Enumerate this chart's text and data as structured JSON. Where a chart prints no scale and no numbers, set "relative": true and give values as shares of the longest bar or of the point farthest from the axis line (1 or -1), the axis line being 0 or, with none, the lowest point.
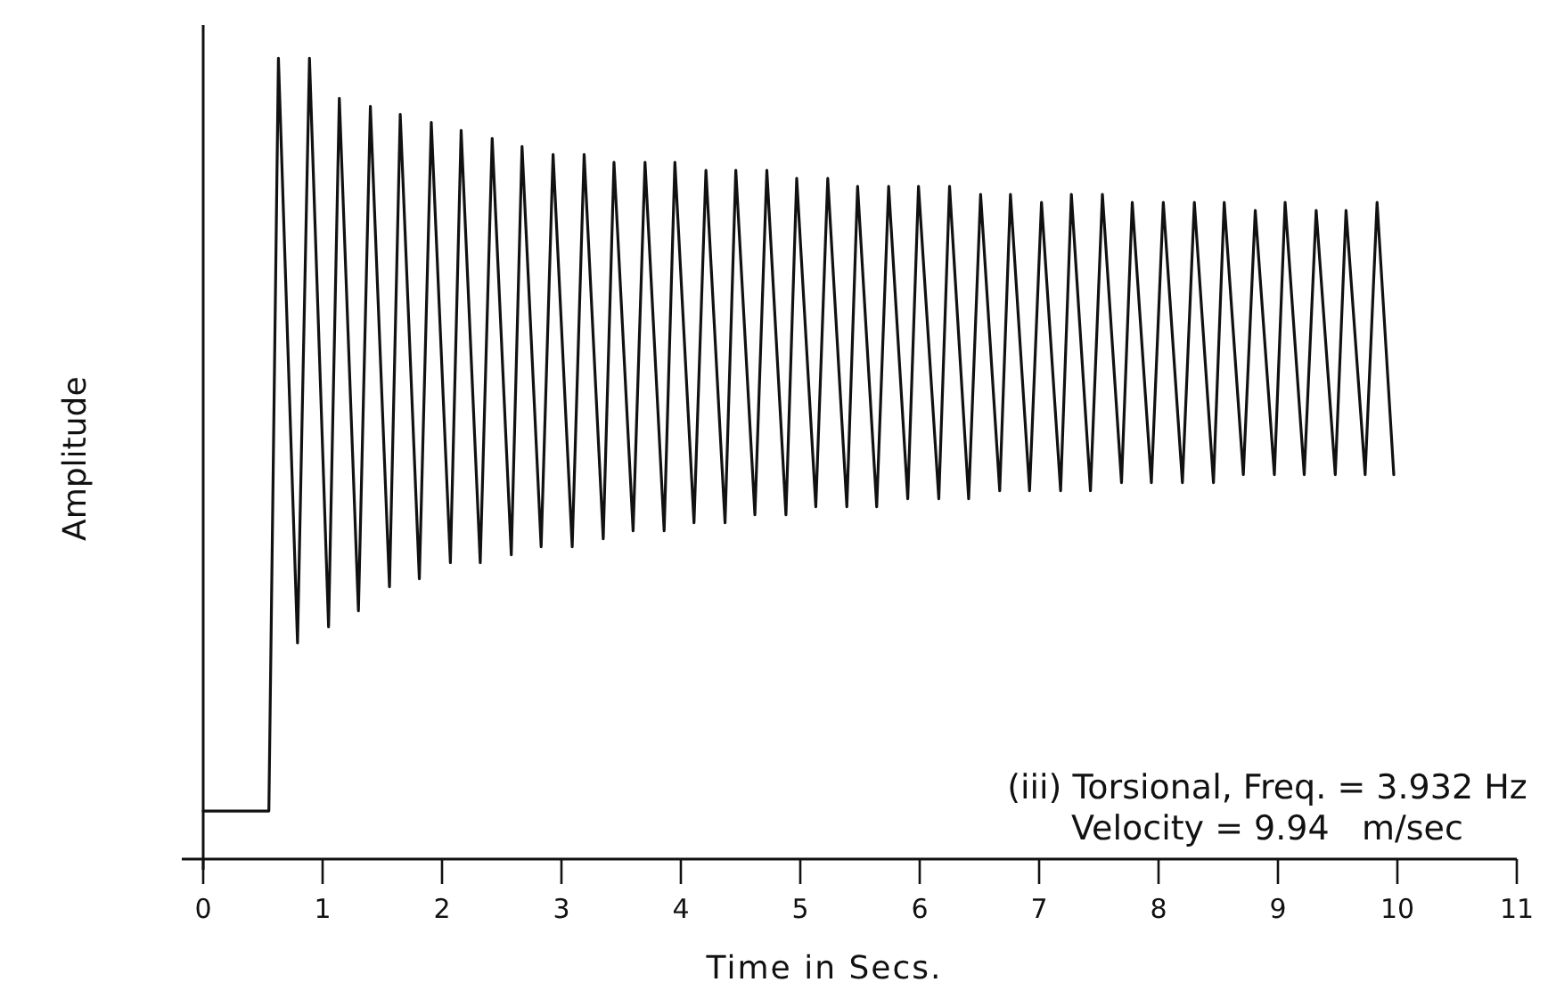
{
  "chart_data": {
    "type": "line",
    "relative": true,
    "xlabel": "Time in Secs.",
    "ylabel": "Amplitude",
    "xlim": [
      0,
      11
    ],
    "xticks": [
      0,
      1,
      2,
      3,
      4,
      5,
      6,
      7,
      8,
      9,
      10,
      11
    ],
    "marker": "none",
    "line_style": "solid",
    "grid": false,
    "annotations": [
      "(iii) Torsional, Freq. = 3.932 Hz",
      "Velocity = 9.94   m/sec"
    ],
    "series": [
      {
        "color": "#111111",
        "x": [
          0,
          0.55,
          0.63,
          0.79,
          0.89,
          1.05,
          1.14,
          1.3,
          1.4,
          1.56,
          1.65,
          1.81,
          1.91,
          2.07,
          2.16,
          2.32,
          2.42,
          2.58,
          2.67,
          2.83,
          2.93,
          3.09,
          3.19,
          3.35,
          3.44,
          3.6,
          3.7,
          3.86,
          3.95,
          4.11,
          4.21,
          4.37,
          4.46,
          4.62,
          4.72,
          4.88,
          4.97,
          5.13,
          5.23,
          5.39,
          5.48,
          5.64,
          5.74,
          5.9,
          5.99,
          6.16,
          6.25,
          6.41,
          6.51,
          6.67,
          6.76,
          6.92,
          7.02,
          7.18,
          7.27,
          7.43,
          7.53,
          7.69,
          7.78,
          7.94,
          8.04,
          8.2,
          8.3,
          8.46,
          8.55,
          8.71,
          8.81,
          8.97,
          9.06,
          9.22,
          9.32,
          9.48,
          9.57,
          9.73,
          9.83,
          9.97
        ],
        "values": [
          0.06,
          0.06,
          1.0,
          0.27,
          1.0,
          0.29,
          0.95,
          0.31,
          0.94,
          0.34,
          0.93,
          0.35,
          0.92,
          0.37,
          0.91,
          0.37,
          0.9,
          0.38,
          0.89,
          0.39,
          0.88,
          0.39,
          0.88,
          0.4,
          0.87,
          0.41,
          0.87,
          0.41,
          0.87,
          0.42,
          0.86,
          0.42,
          0.86,
          0.43,
          0.86,
          0.43,
          0.85,
          0.44,
          0.85,
          0.44,
          0.84,
          0.44,
          0.84,
          0.45,
          0.84,
          0.45,
          0.84,
          0.45,
          0.83,
          0.46,
          0.83,
          0.46,
          0.82,
          0.46,
          0.83,
          0.46,
          0.83,
          0.47,
          0.82,
          0.47,
          0.82,
          0.47,
          0.82,
          0.47,
          0.82,
          0.48,
          0.81,
          0.48,
          0.82,
          0.48,
          0.81,
          0.48,
          0.81,
          0.48,
          0.82,
          0.48
        ]
      }
    ]
  }
}
